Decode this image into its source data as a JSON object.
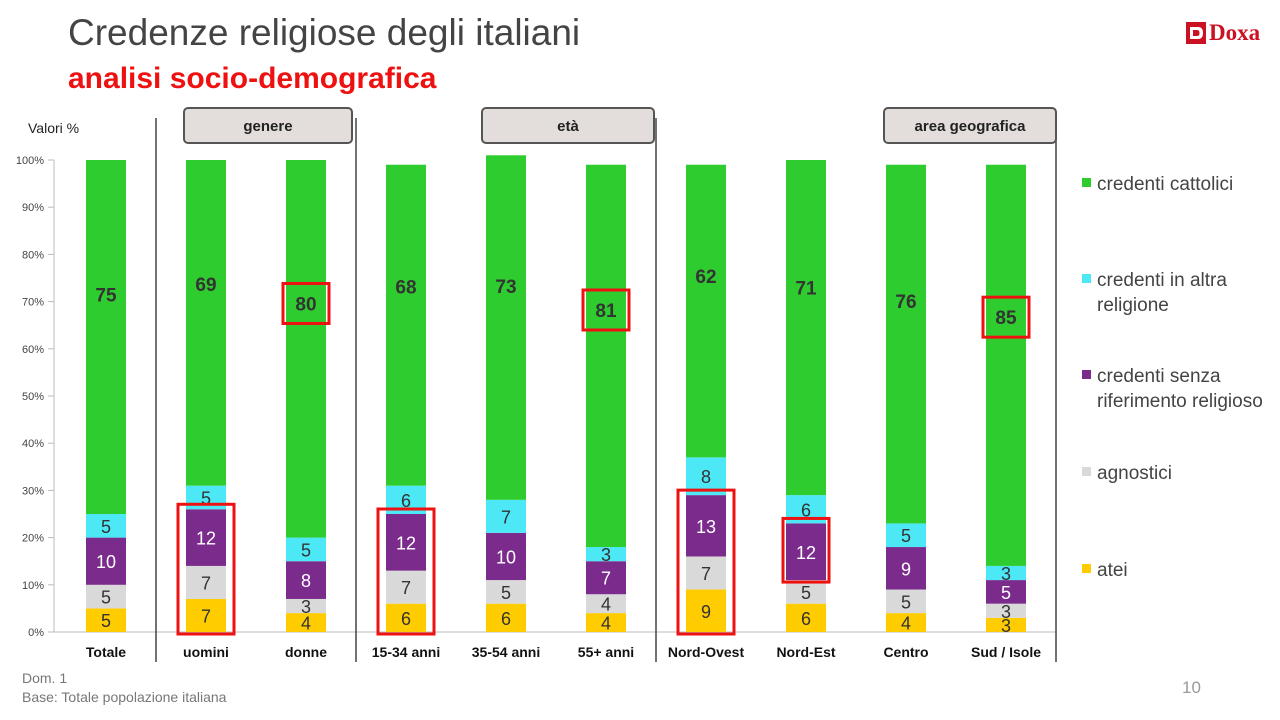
{
  "header": {
    "title": "Credenze religiose degli italiani",
    "subtitle": "analisi socio-demografica"
  },
  "logo": {
    "text": "Doxa"
  },
  "footer": {
    "question": "Dom. 1",
    "base": "Base: Totale popolazione italiana",
    "page_number": "10"
  },
  "chart_data": {
    "type": "bar",
    "stacked": true,
    "y_unit_label": "Valori %",
    "ylim": [
      0,
      100
    ],
    "y_ticks": [
      "0%",
      "10%",
      "20%",
      "30%",
      "40%",
      "50%",
      "60%",
      "70%",
      "80%",
      "90%",
      "100%"
    ],
    "groups": [
      {
        "label": "genere",
        "categories": [
          "uomini",
          "donne"
        ]
      },
      {
        "label": "età",
        "categories": [
          "15-34 anni",
          "35-54 anni",
          "55+ anni"
        ]
      },
      {
        "label": "area geografica",
        "categories": [
          "Nord-Ovest",
          "Nord-Est",
          "Centro",
          "Sud / Isole"
        ]
      }
    ],
    "categories": [
      "Totale",
      "uomini",
      "donne",
      "15-34 anni",
      "35-54 anni",
      "55+ anni",
      "Nord-Ovest",
      "Nord-Est",
      "Centro",
      "Sud / Isole"
    ],
    "series": [
      {
        "name": "atei",
        "color": "#ffcc00",
        "values": [
          5,
          7,
          4,
          6,
          6,
          4,
          9,
          6,
          4,
          3
        ]
      },
      {
        "name": "agnostici",
        "color": "#d9d9d9",
        "values": [
          5,
          7,
          3,
          7,
          5,
          4,
          7,
          5,
          5,
          3
        ]
      },
      {
        "name": "credenti senza riferimento religioso",
        "color": "#7b2b8c",
        "values": [
          10,
          12,
          8,
          12,
          10,
          7,
          13,
          12,
          9,
          5
        ]
      },
      {
        "name": "credenti in altra religione",
        "color": "#4de8f5",
        "values": [
          5,
          5,
          5,
          6,
          7,
          3,
          8,
          6,
          5,
          3
        ]
      },
      {
        "name": "credenti cattolici",
        "color": "#2ecc2e",
        "values": [
          75,
          69,
          80,
          68,
          73,
          81,
          62,
          71,
          76,
          85
        ]
      }
    ],
    "highlights": [
      {
        "category": "uomini",
        "series": [
          "atei",
          "agnostici",
          "credenti senza riferimento religioso"
        ]
      },
      {
        "category": "donne",
        "series": [
          "credenti cattolici"
        ]
      },
      {
        "category": "15-34 anni",
        "series": [
          "atei",
          "agnostici",
          "credenti senza riferimento religioso"
        ]
      },
      {
        "category": "55+ anni",
        "series": [
          "credenti cattolici"
        ]
      },
      {
        "category": "Nord-Ovest",
        "series": [
          "atei",
          "agnostici",
          "credenti senza riferimento religioso"
        ]
      },
      {
        "category": "Nord-Est",
        "series": [
          "credenti senza riferimento religioso"
        ]
      },
      {
        "category": "Sud / Isole",
        "series": [
          "credenti cattolici"
        ]
      }
    ],
    "legend_order": [
      "credenti cattolici",
      "credenti in altra religione",
      "credenti senza riferimento religioso",
      "agnostici",
      "atei"
    ]
  }
}
